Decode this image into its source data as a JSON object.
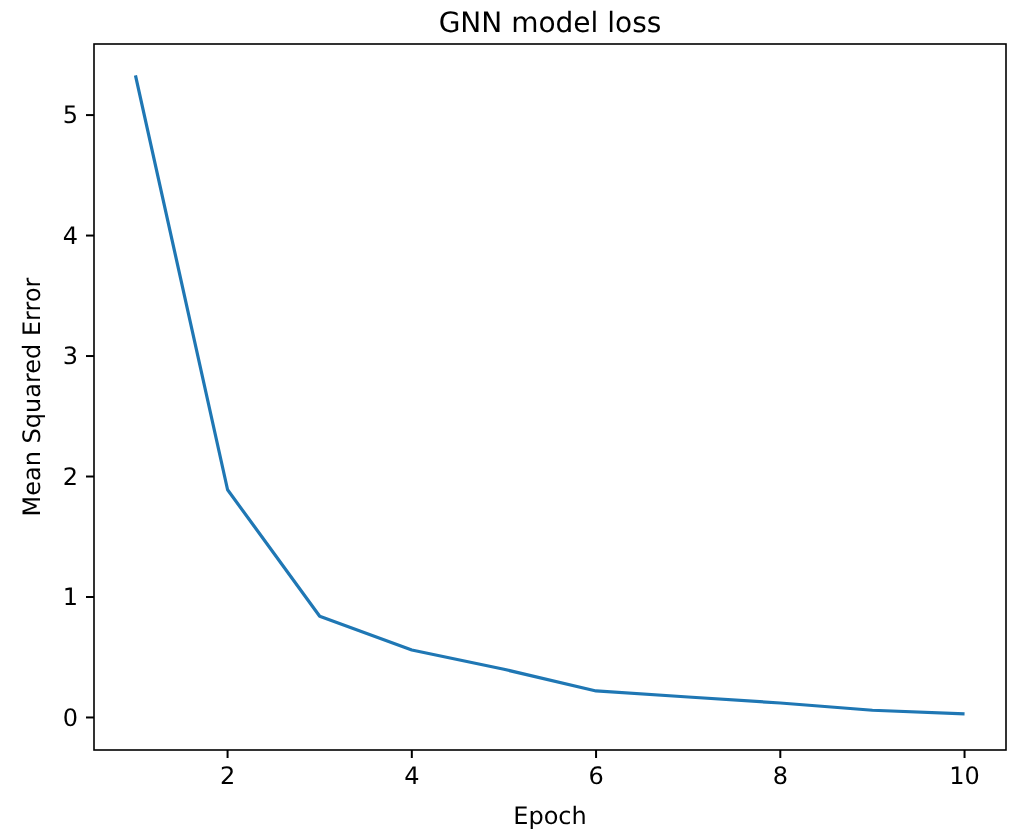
{
  "chart_data": {
    "type": "line",
    "title": "GNN model loss",
    "xlabel": "Epoch",
    "ylabel": "Mean Squared Error",
    "x": [
      1,
      2,
      3,
      4,
      5,
      6,
      7,
      8,
      9,
      10
    ],
    "series": [
      {
        "color": "#1f77b4",
        "values": [
          5.33,
          1.89,
          0.84,
          0.56,
          0.4,
          0.22,
          0.17,
          0.12,
          0.06,
          0.03
        ]
      }
    ],
    "xlim": [
      0.55,
      10.45
    ],
    "ylim": [
      -0.27,
      5.59
    ],
    "xticks": [
      2,
      4,
      6,
      8,
      10
    ],
    "yticks": [
      0,
      1,
      2,
      3,
      4,
      5
    ]
  }
}
